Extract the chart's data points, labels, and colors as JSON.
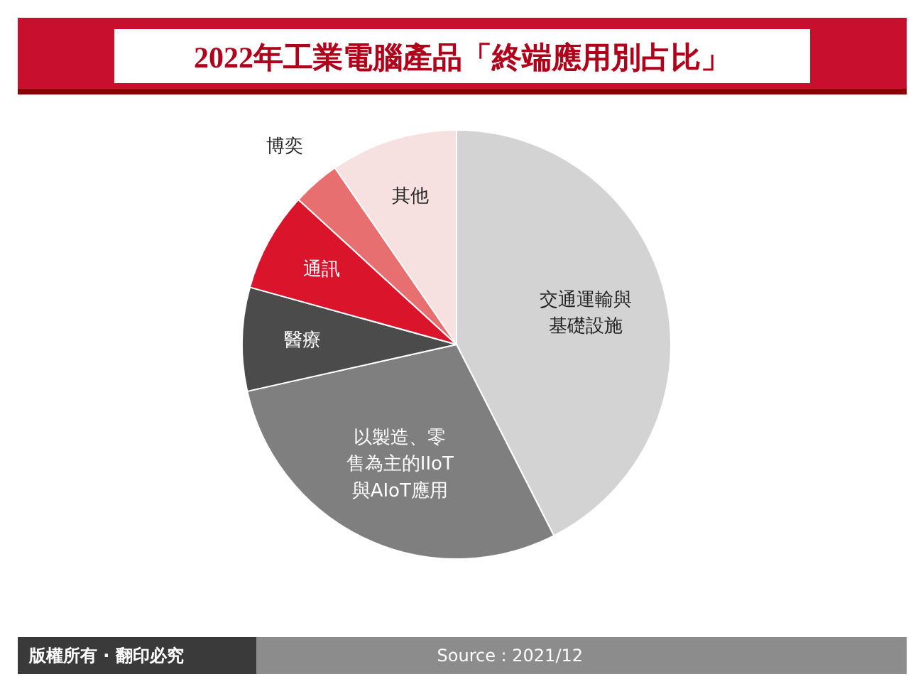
{
  "chart_data": {
    "type": "pie",
    "title": "2022年工業電腦產品「終端應用別占比」",
    "categories": [
      "交通運輸與基礎設施",
      "以製造、零售為主的IIoT與AIoT應用",
      "醫療",
      "通訊",
      "博奕",
      "其他"
    ],
    "values": [
      42.5,
      29,
      7.8,
      7.5,
      3.6,
      9.6
    ],
    "colors": [
      "#d3d3d3",
      "#7f7f7f",
      "#4b4b4b",
      "#d9142b",
      "#e86f6f",
      "#f6e0e0"
    ],
    "annotations": [
      "版權所有 · 翻印必究",
      "Source : 2021/12"
    ]
  }
}
